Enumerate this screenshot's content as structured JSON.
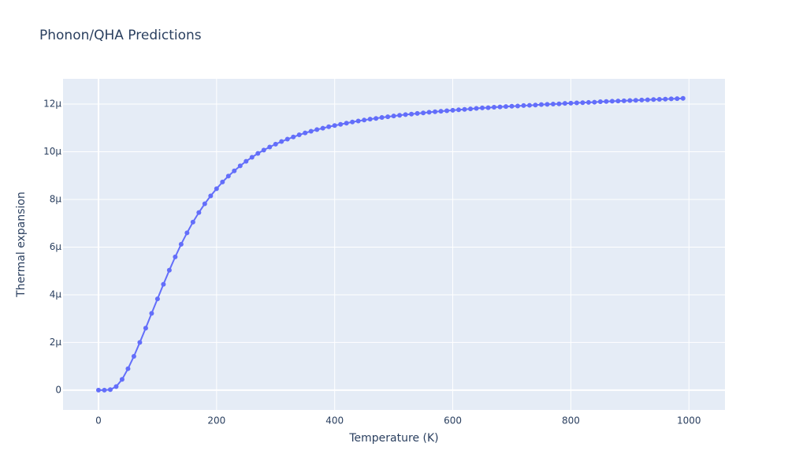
{
  "chart_data": {
    "type": "line",
    "title": "Phonon/QHA Predictions",
    "x_label": "Temperature (K)",
    "y_label": "Thermal expansion",
    "x": [
      0,
      10,
      20,
      30,
      40,
      50,
      60,
      70,
      80,
      90,
      100,
      110,
      120,
      130,
      140,
      150,
      160,
      170,
      180,
      190,
      200,
      210,
      220,
      230,
      240,
      250,
      260,
      270,
      280,
      290,
      300,
      310,
      320,
      330,
      340,
      350,
      360,
      370,
      380,
      390,
      400,
      410,
      420,
      430,
      440,
      450,
      460,
      470,
      480,
      490,
      500,
      510,
      520,
      530,
      540,
      550,
      560,
      570,
      580,
      590,
      600,
      610,
      620,
      630,
      640,
      650,
      660,
      670,
      680,
      690,
      700,
      710,
      720,
      730,
      740,
      750,
      760,
      770,
      780,
      790,
      800,
      810,
      820,
      830,
      840,
      850,
      860,
      870,
      880,
      890,
      900,
      910,
      920,
      930,
      940,
      950,
      960,
      970,
      980,
      990
    ],
    "series": [
      {
        "color": "#636efa",
        "values": [
          0.0,
          0.0,
          2e-08,
          1.5e-07,
          4.5e-07,
          9e-07,
          1.42e-06,
          2e-06,
          2.6e-06,
          3.22e-06,
          3.83e-06,
          4.44e-06,
          5.03e-06,
          5.59e-06,
          6.12e-06,
          6.6e-06,
          7.05e-06,
          7.45e-06,
          7.82e-06,
          8.15e-06,
          8.45e-06,
          8.73e-06,
          8.98e-06,
          9.2e-06,
          9.41e-06,
          9.6e-06,
          9.77e-06,
          9.93e-06,
          1.007e-05,
          1.02e-05,
          1.032e-05,
          1.043e-05,
          1.053e-05,
          1.062e-05,
          1.071e-05,
          1.079e-05,
          1.086e-05,
          1.093e-05,
          1.099e-05,
          1.105e-05,
          1.11e-05,
          1.115e-05,
          1.12e-05,
          1.125e-05,
          1.129e-05,
          1.133e-05,
          1.137e-05,
          1.14e-05,
          1.144e-05,
          1.147e-05,
          1.15e-05,
          1.153e-05,
          1.156e-05,
          1.158e-05,
          1.161e-05,
          1.163e-05,
          1.166e-05,
          1.168e-05,
          1.17e-05,
          1.172e-05,
          1.174e-05,
          1.176e-05,
          1.178e-05,
          1.18e-05,
          1.182e-05,
          1.184e-05,
          1.185e-05,
          1.187e-05,
          1.188e-05,
          1.19e-05,
          1.191e-05,
          1.192e-05,
          1.194e-05,
          1.195e-05,
          1.196e-05,
          1.198e-05,
          1.199e-05,
          1.2e-05,
          1.201e-05,
          1.203e-05,
          1.204e-05,
          1.205e-05,
          1.206e-05,
          1.207e-05,
          1.208e-05,
          1.21e-05,
          1.211e-05,
          1.212e-05,
          1.213e-05,
          1.214e-05,
          1.215e-05,
          1.216e-05,
          1.217e-05,
          1.218e-05,
          1.219e-05,
          1.22e-05,
          1.221e-05,
          1.222e-05,
          1.223e-05,
          1.224e-05
        ]
      }
    ],
    "xlim": [
      -60,
      1061
    ],
    "ylim": [
      -8.3e-07,
      1.306e-05
    ],
    "xticks": [
      0,
      200,
      400,
      600,
      800,
      1000
    ],
    "yticks": [
      0,
      {
        "value": 2e-06,
        "label": "2μ"
      },
      {
        "value": 4e-06,
        "label": "4μ"
      },
      {
        "value": 6e-06,
        "label": "6μ"
      },
      {
        "value": 8e-06,
        "label": "8μ"
      },
      {
        "value": 1e-05,
        "label": "10μ"
      },
      {
        "value": 1.2e-05,
        "label": "12μ"
      }
    ],
    "grid": true,
    "markers": true
  }
}
